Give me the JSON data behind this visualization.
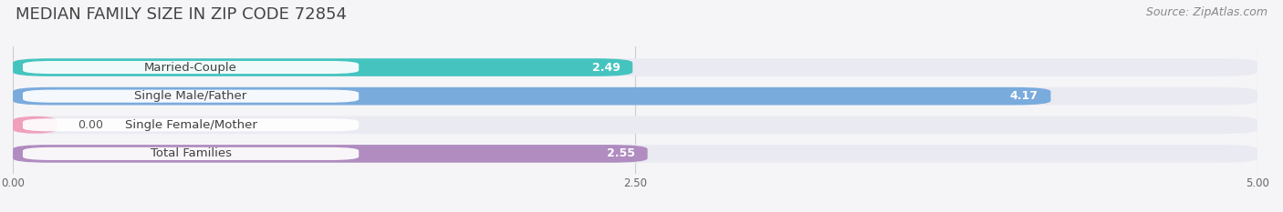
{
  "title": "MEDIAN FAMILY SIZE IN ZIP CODE 72854",
  "source": "Source: ZipAtlas.com",
  "categories": [
    "Married-Couple",
    "Single Male/Father",
    "Single Female/Mother",
    "Total Families"
  ],
  "values": [
    2.49,
    4.17,
    0.0,
    2.55
  ],
  "bar_colors": [
    "#45C4BF",
    "#7AABDD",
    "#F0A0BB",
    "#B08CC0"
  ],
  "bar_bg_color": "#EAEAF2",
  "xlim_max": 5.0,
  "xticks": [
    0.0,
    2.5,
    5.0
  ],
  "xticklabels": [
    "0.00",
    "2.50",
    "5.00"
  ],
  "title_fontsize": 13,
  "source_fontsize": 9,
  "label_fontsize": 9.5,
  "value_fontsize": 9,
  "bar_height": 0.62,
  "figsize": [
    14.06,
    2.33
  ],
  "dpi": 100,
  "background_color": "#F5F5F8"
}
